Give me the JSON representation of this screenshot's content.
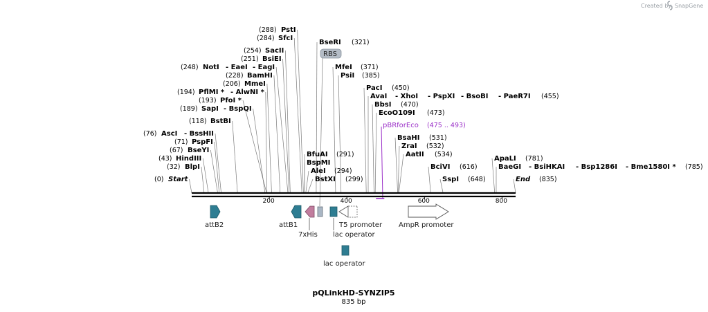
{
  "credit": {
    "prefix": "Created by",
    "brand": "SnapGene"
  },
  "plasmid": {
    "name": "pQLinkHD-SYNZIP5",
    "length_text": "835 bp",
    "length_bp": 835
  },
  "axis_ticks": [
    {
      "bp": 200,
      "label": "200"
    },
    {
      "bp": 400,
      "label": "400"
    },
    {
      "bp": 600,
      "label": "600"
    },
    {
      "bp": 800,
      "label": "800"
    }
  ],
  "site_rows": [
    {
      "bp": 0,
      "pos_first": true,
      "pos": "(0)",
      "names": [
        "Start"
      ],
      "italic": true
    },
    {
      "bp": 835,
      "pos_first": false,
      "pos": "(835)",
      "names": [
        "End"
      ],
      "italic": true
    },
    {
      "bp": 32,
      "pos_first": true,
      "pos": "(32)",
      "names": [
        "BlpI"
      ]
    },
    {
      "bp": 43,
      "pos_first": true,
      "pos": "(43)",
      "names": [
        "HindIII"
      ]
    },
    {
      "bp": 67,
      "pos_first": true,
      "pos": "(67)",
      "names": [
        "BseYI"
      ]
    },
    {
      "bp": 71,
      "pos_first": true,
      "pos": "(71)",
      "names": [
        "PspFI"
      ]
    },
    {
      "bp": 76,
      "pos_first": true,
      "pos": "(76)",
      "names": [
        "AscI",
        "- BssHII"
      ]
    },
    {
      "bp": 118,
      "pos_first": true,
      "pos": "(118)",
      "names": [
        "BstBI"
      ]
    },
    {
      "bp": 189,
      "pos_first": true,
      "pos": "(189)",
      "names": [
        "SapI",
        "- BspQI"
      ]
    },
    {
      "bp": 193,
      "pos_first": true,
      "pos": "(193)",
      "names": [
        "PfoI *"
      ]
    },
    {
      "bp": 194,
      "pos_first": true,
      "pos": "(194)",
      "names": [
        "PflMI *",
        "- AlwNI *"
      ]
    },
    {
      "bp": 206,
      "pos_first": true,
      "pos": "(206)",
      "names": [
        "MmeI"
      ]
    },
    {
      "bp": 228,
      "pos_first": true,
      "pos": "(228)",
      "names": [
        "BamHI"
      ]
    },
    {
      "bp": 248,
      "pos_first": true,
      "pos": "(248)",
      "names": [
        "NotI",
        "- EaeI",
        "- EagI"
      ]
    },
    {
      "bp": 251,
      "pos_first": true,
      "pos": "(251)",
      "names": [
        "BsiEI"
      ]
    },
    {
      "bp": 254,
      "pos_first": true,
      "pos": "(254)",
      "names": [
        "SacII"
      ]
    },
    {
      "bp": 284,
      "pos_first": true,
      "pos": "(284)",
      "names": [
        "SfcI"
      ]
    },
    {
      "bp": 288,
      "pos_first": true,
      "pos": "(288)",
      "names": [
        "PstI"
      ]
    },
    {
      "bp": 291,
      "pos_first": false,
      "pos": "(291)",
      "names": [
        "BfuAI"
      ]
    },
    {
      "bp": 291,
      "pos_first": false,
      "pos": "",
      "names": [
        "BspMI"
      ]
    },
    {
      "bp": 294,
      "pos_first": false,
      "pos": "(294)",
      "names": [
        "AleI"
      ]
    },
    {
      "bp": 299,
      "pos_first": false,
      "pos": "(299)",
      "names": [
        "BstXI"
      ]
    },
    {
      "bp": 321,
      "pos_first": false,
      "pos": "(321)",
      "names": [
        "BseRI"
      ]
    },
    {
      "bp": 371,
      "pos_first": false,
      "pos": "(371)",
      "names": [
        "MfeI"
      ]
    },
    {
      "bp": 385,
      "pos_first": false,
      "pos": "(385)",
      "names": [
        "PsiI"
      ]
    },
    {
      "bp": 450,
      "pos_first": false,
      "pos": "(450)",
      "names": [
        "PacI"
      ]
    },
    {
      "bp": 455,
      "pos_first": false,
      "pos": "(455)",
      "names": [
        "AvaI",
        "- XhoI",
        "- PspXI",
        "- BsoBI",
        "- PaeR7I"
      ]
    },
    {
      "bp": 470,
      "pos_first": false,
      "pos": "(470)",
      "names": [
        "BbsI"
      ]
    },
    {
      "bp": 473,
      "pos_first": false,
      "pos": "(473)",
      "names": [
        "EcoO109I"
      ]
    },
    {
      "bp": 531,
      "pos_first": false,
      "pos": "(531)",
      "names": [
        "BsaHI"
      ]
    },
    {
      "bp": 532,
      "pos_first": false,
      "pos": "(532)",
      "names": [
        "ZraI"
      ]
    },
    {
      "bp": 534,
      "pos_first": false,
      "pos": "(534)",
      "names": [
        "AatII"
      ]
    },
    {
      "bp": 616,
      "pos_first": false,
      "pos": "(616)",
      "names": [
        "BciVI"
      ]
    },
    {
      "bp": 648,
      "pos_first": false,
      "pos": "(648)",
      "names": [
        "SspI"
      ]
    },
    {
      "bp": 781,
      "pos_first": false,
      "pos": "(781)",
      "names": [
        "ApaLI"
      ]
    },
    {
      "bp": 785,
      "pos_first": false,
      "pos": "(785)",
      "names": [
        "BaeGI",
        "- BsiHKAI",
        "- Bsp1286I",
        "- Bme1580I *"
      ]
    }
  ],
  "primer": {
    "name": "pBRforEco",
    "range": "(475 .. 493)",
    "start_bp": 475,
    "end_bp": 493,
    "color": "#9b30c8"
  },
  "rbs": {
    "label": "RBS",
    "color": "#b4bcc6"
  },
  "features": [
    {
      "id": "attB2",
      "label": "attB2",
      "shape": "arrow-right",
      "color": "#2e7d92",
      "start_bp": 48,
      "end_bp": 72
    },
    {
      "id": "attB1",
      "label": "attB1",
      "shape": "arrow-left",
      "color": "#2e7d92",
      "start_bp": 254,
      "end_bp": 278
    },
    {
      "id": "7xHis",
      "label": "7xHis",
      "shape": "arrow-left",
      "color": "#c17d9e",
      "start_bp": 291,
      "end_bp": 312
    },
    {
      "id": "rbs-box",
      "label": "",
      "shape": "box",
      "color": "#a9b6c4",
      "start_bp": 317,
      "end_bp": 331
    },
    {
      "id": "lac-op-1",
      "label": "lac operator",
      "shape": "box",
      "color": "#2e7d92",
      "start_bp": 353,
      "end_bp": 371
    },
    {
      "id": "t5-promoter",
      "label": "T5 promoter",
      "shape": "arrow-left-open",
      "color": "#ffffff",
      "start_bp": 377,
      "end_bp": 426
    },
    {
      "id": "ampr-promoter",
      "label": "AmpR promoter",
      "shape": "arrow-right-open",
      "color": "#ffffff",
      "start_bp": 560,
      "end_bp": 664
    },
    {
      "id": "lac-op-2",
      "label": "lac operator",
      "shape": "box",
      "color": "#2e7d92",
      "start_bp": 388,
      "end_bp": 406
    }
  ],
  "colors": {
    "backbone": "#000000",
    "site_line": "#7a7a7a",
    "feature_stroke": "#444444"
  }
}
